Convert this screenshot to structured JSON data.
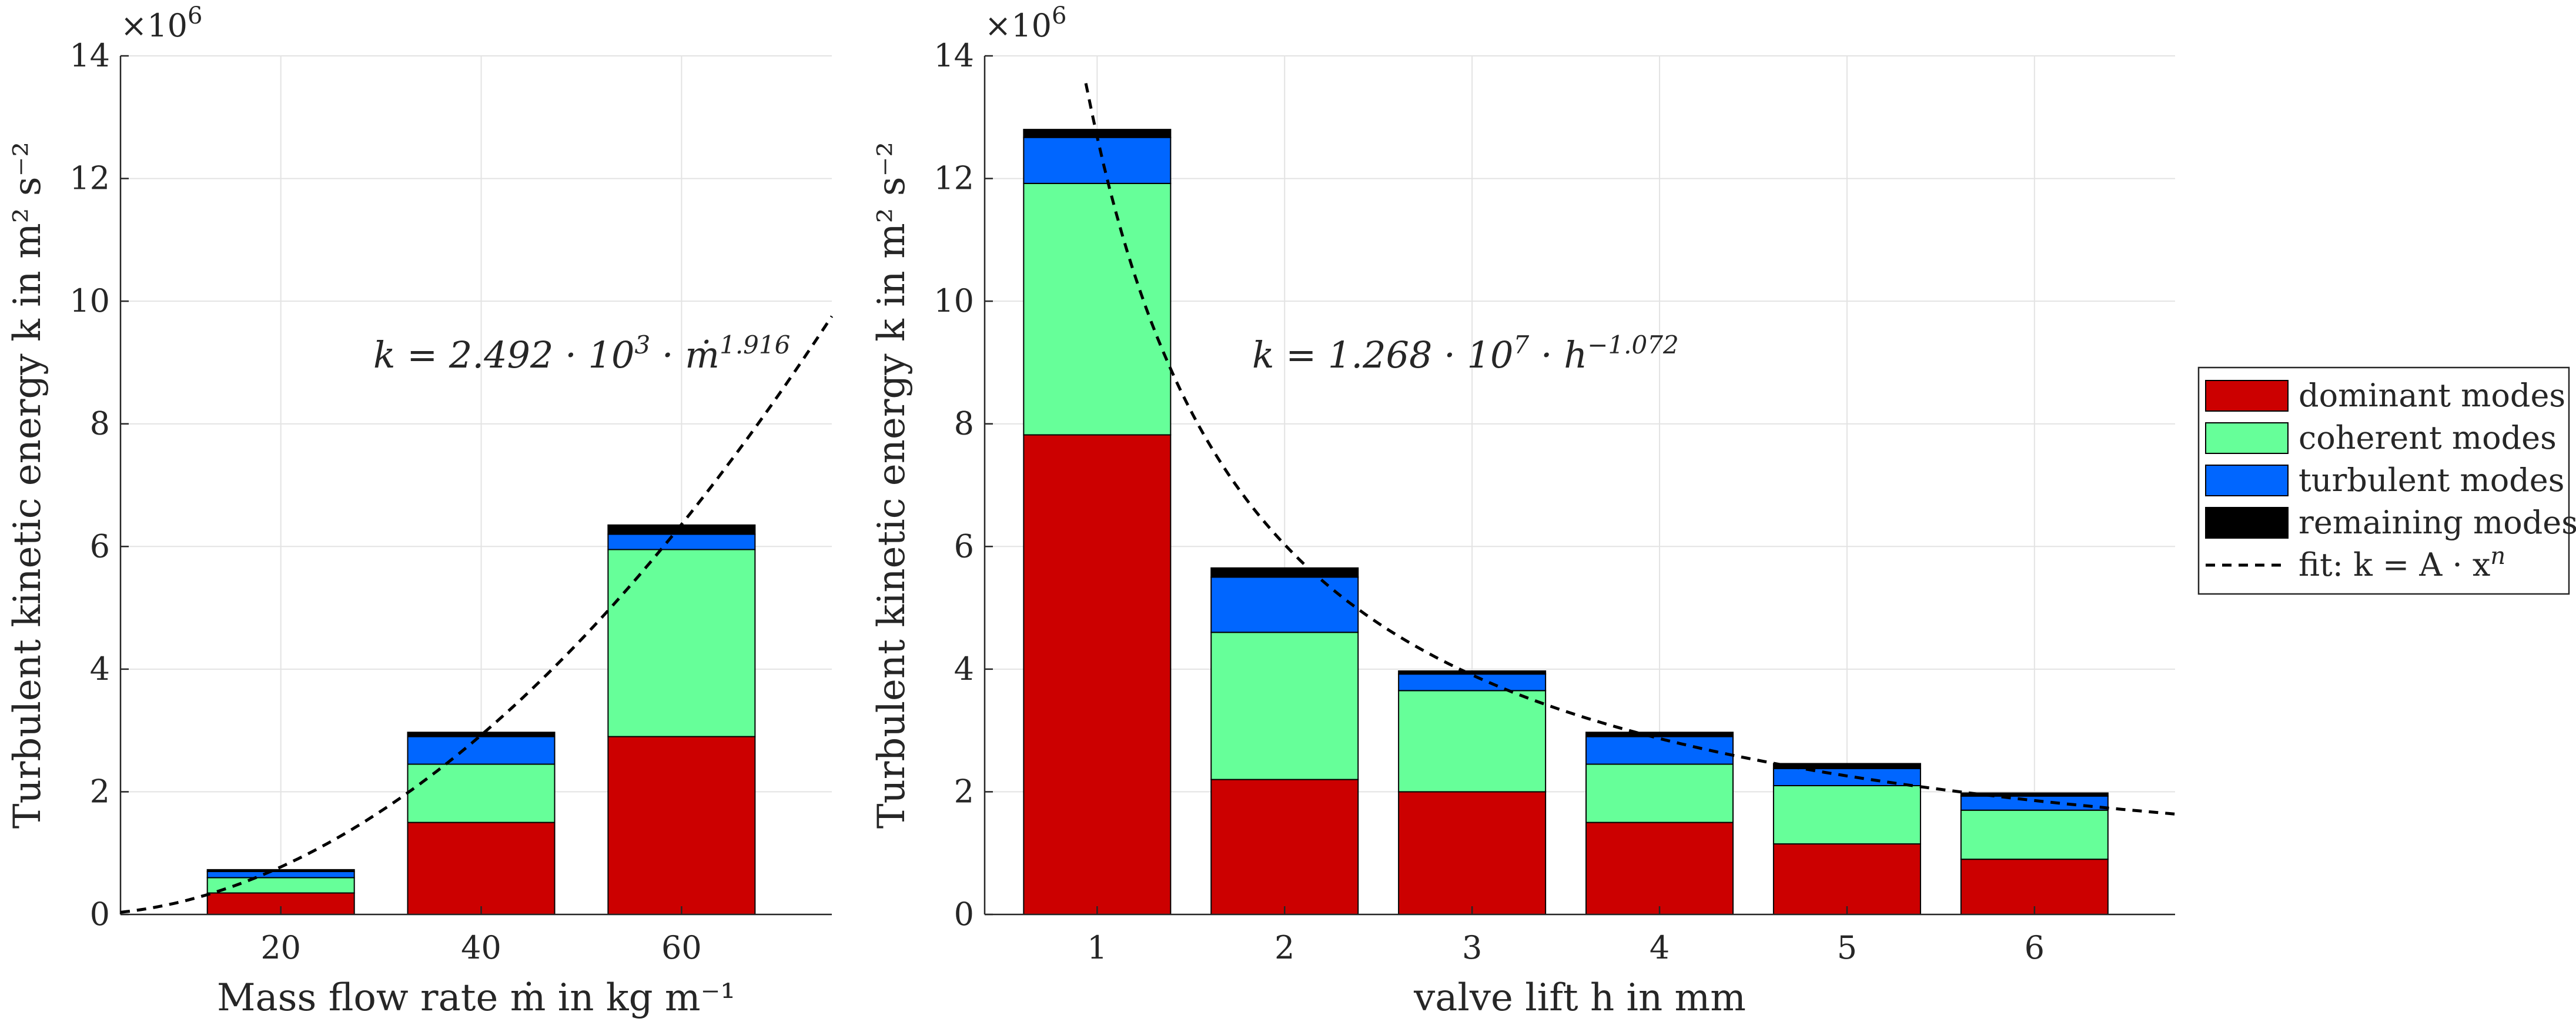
{
  "chart_data": [
    {
      "type": "bar",
      "stacked": true,
      "xlabel": "Mass flow rate ṁ in kg m⁻¹",
      "ylabel": "Turbulent kinetic energy k in m² s⁻²",
      "exponent_label": "×10",
      "exponent_power": "6",
      "x": [
        20,
        40,
        60
      ],
      "x_tick_labels": [
        "20",
        "40",
        "60"
      ],
      "xlim": [
        4,
        75
      ],
      "ylim": [
        0,
        14
      ],
      "y_ticks": [
        0,
        2,
        4,
        6,
        8,
        10,
        12,
        14
      ],
      "y_tick_labels": [
        "0",
        "2",
        "4",
        "6",
        "8",
        "10",
        "12",
        "14"
      ],
      "grid": true,
      "series": [
        {
          "name": "dominant modes",
          "color": "#cc0000",
          "values": [
            0.35,
            1.5,
            2.9
          ]
        },
        {
          "name": "coherent modes",
          "color": "#66ff99",
          "values": [
            0.25,
            0.95,
            3.05
          ]
        },
        {
          "name": "turbulent modes",
          "color": "#0066ff",
          "values": [
            0.1,
            0.45,
            0.25
          ]
        },
        {
          "name": "remaining modes",
          "color": "#000000",
          "values": [
            0.03,
            0.07,
            0.15
          ]
        }
      ],
      "fit": {
        "A": 2492,
        "n": 1.916,
        "scale": 1000000
      },
      "annotation": {
        "prefix": "k = 2.492 · 10",
        "exp1": "3",
        "mid": " · ṁ",
        "exp2": "1.916"
      }
    },
    {
      "type": "bar",
      "stacked": true,
      "xlabel": "valve lift h in mm",
      "ylabel": "Turbulent kinetic energy k in m² s⁻²",
      "exponent_label": "×10",
      "exponent_power": "6",
      "x": [
        1,
        2,
        3,
        4,
        5,
        6
      ],
      "x_tick_labels": [
        "1",
        "2",
        "3",
        "4",
        "5",
        "6"
      ],
      "xlim": [
        0.4,
        6.75
      ],
      "ylim": [
        0,
        14
      ],
      "y_ticks": [
        0,
        2,
        4,
        6,
        8,
        10,
        12,
        14
      ],
      "y_tick_labels": [
        "0",
        "2",
        "4",
        "6",
        "8",
        "10",
        "12",
        "14"
      ],
      "grid": true,
      "series": [
        {
          "name": "dominant modes",
          "color": "#cc0000",
          "values": [
            7.82,
            2.2,
            2.0,
            1.5,
            1.15,
            0.9
          ]
        },
        {
          "name": "coherent modes",
          "color": "#66ff99",
          "values": [
            4.1,
            2.4,
            1.65,
            0.95,
            0.95,
            0.8
          ]
        },
        {
          "name": "turbulent modes",
          "color": "#0066ff",
          "values": [
            0.75,
            0.9,
            0.27,
            0.45,
            0.28,
            0.23
          ]
        },
        {
          "name": "remaining modes",
          "color": "#000000",
          "values": [
            0.13,
            0.15,
            0.05,
            0.07,
            0.08,
            0.05
          ]
        }
      ],
      "fit": {
        "A": 12680000,
        "n": -1.072,
        "scale": 1000000
      },
      "annotation": {
        "prefix": "k = 1.268 · 10",
        "exp1": "7",
        "mid": " · h",
        "exp2": "−1.072"
      }
    }
  ],
  "legend": {
    "items": [
      {
        "label": "dominant modes",
        "color": "#cc0000"
      },
      {
        "label": "coherent modes",
        "color": "#66ff99"
      },
      {
        "label": "turbulent modes",
        "color": "#0066ff"
      },
      {
        "label": "remaining modes",
        "color": "#000000"
      }
    ],
    "fit_label": "fit: k = A · x",
    "fit_exponent": "n"
  }
}
